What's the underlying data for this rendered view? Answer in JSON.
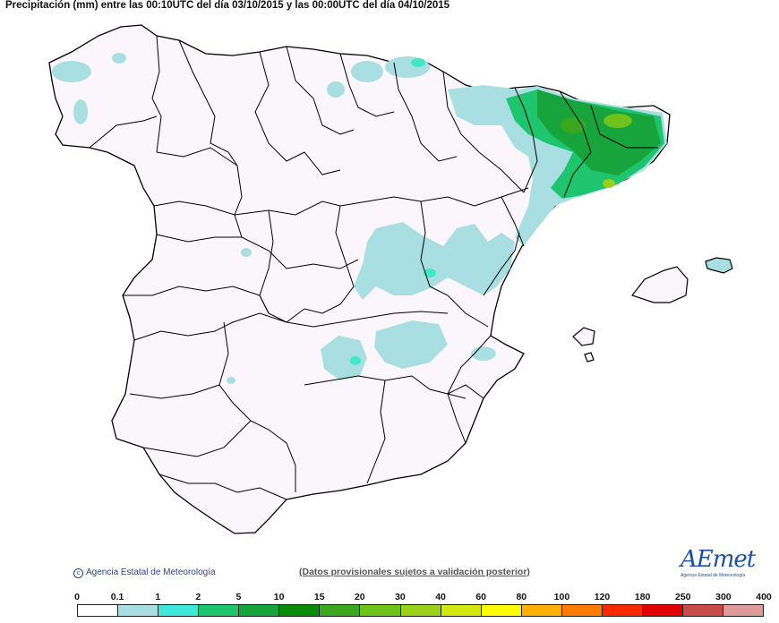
{
  "title": "Precipitación (mm) entre las 00:10UTC del día 03/10/2015 y las 00:00UTC del día 04/10/2015",
  "copyright": "Agencia Estatal de Meteorología",
  "provisional_note": "(Datos provisionales sujetos a validación posterior)",
  "logo": {
    "text": "AEmet",
    "subtitle": "Agencia Estatal de Meteorología"
  },
  "colors": {
    "background": "#fbf6fc",
    "border": "#000000",
    "light": "#a9dfe2",
    "cyan": "#3fe8c6",
    "green1": "#1fc46e",
    "green2": "#18a43c",
    "green3": "#3aa81e",
    "lime": "#9ad11a"
  },
  "legend": {
    "labels": [
      "0",
      "0.1",
      "1",
      "2",
      "5",
      "10",
      "15",
      "20",
      "30",
      "40",
      "60",
      "80",
      "100",
      "120",
      "180",
      "250",
      "300",
      "400"
    ],
    "colors": [
      "#ffffff",
      "#a9dfe2",
      "#3fe8d8",
      "#1fc46e",
      "#18a43c",
      "#0a8a0a",
      "#3aa81e",
      "#6ec21a",
      "#9ad11a",
      "#d2e80f",
      "#ffff00",
      "#ffb000",
      "#ff7a00",
      "#ff2a00",
      "#e00000",
      "#c84a4a",
      "#e09a9a",
      "#f2c8c8"
    ]
  }
}
